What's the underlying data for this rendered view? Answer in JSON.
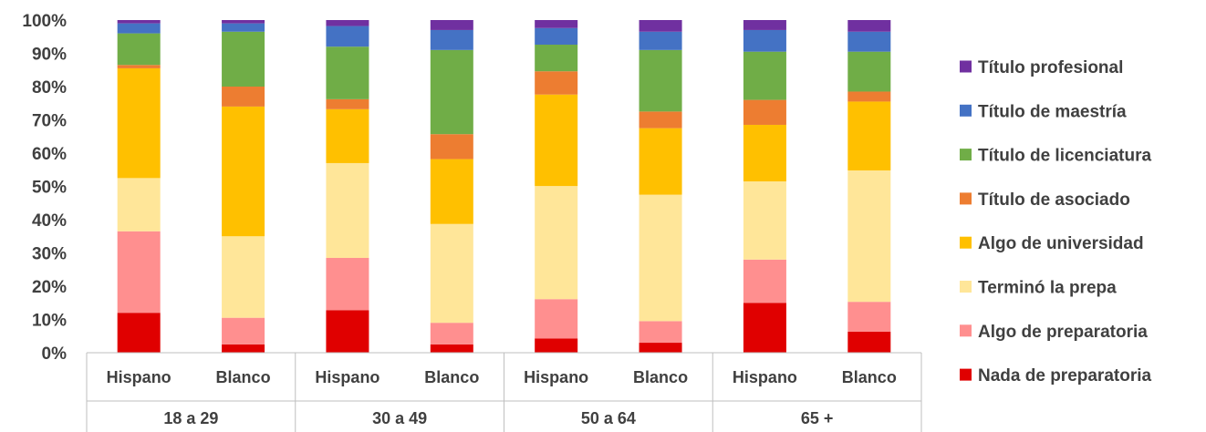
{
  "chart_data": {
    "type": "bar",
    "stacked": true,
    "percent": true,
    "title": "",
    "xlabel": "",
    "ylabel": "",
    "ylim": [
      0,
      100
    ],
    "yticks": [
      "0%",
      "10%",
      "20%",
      "30%",
      "40%",
      "50%",
      "60%",
      "70%",
      "80%",
      "90%",
      "100%"
    ],
    "grid": false,
    "legend_position": "right",
    "groups": [
      "18 a 29",
      "30 a 49",
      "50 a 64",
      "65 +"
    ],
    "categories": [
      "Hispano",
      "Blanco",
      "Hispano",
      "Blanco",
      "Hispano",
      "Blanco",
      "Hispano",
      "Blanco"
    ],
    "series": [
      {
        "name": "Nada de preparatoria",
        "color": "#e00000",
        "values": [
          12,
          2.5,
          12.8,
          2.5,
          4.3,
          3,
          15,
          6.3
        ]
      },
      {
        "name": "Algo de preparatoria",
        "color": "#ff8f8f",
        "values": [
          24.5,
          8,
          15.7,
          6.5,
          11.8,
          6.5,
          13,
          9
        ]
      },
      {
        "name": "Terminó la prepa",
        "color": "#ffe699",
        "values": [
          16,
          24.5,
          28.5,
          29.7,
          34,
          38,
          23.5,
          39.5
        ]
      },
      {
        "name": "Algo de universidad",
        "color": "#ffc000",
        "values": [
          33,
          39,
          16.2,
          19.5,
          27.5,
          20,
          17,
          20.7
        ]
      },
      {
        "name": "Título de asociado",
        "color": "#ed7d31",
        "values": [
          1,
          6,
          3,
          7.5,
          7,
          5,
          7.5,
          3
        ]
      },
      {
        "name": "Título de licenciatura",
        "color": "#70ad47",
        "values": [
          9.5,
          16.5,
          15.8,
          25.3,
          8,
          18.5,
          14.5,
          12
        ]
      },
      {
        "name": "Título de maestría",
        "color": "#4472c4",
        "values": [
          3,
          2.5,
          6.2,
          6,
          5,
          5.5,
          6.5,
          6
        ]
      },
      {
        "name": "Título profesional",
        "color": "#7030a0",
        "values": [
          1,
          1,
          1.8,
          3,
          2.4,
          3.5,
          3,
          3.5
        ]
      }
    ]
  }
}
